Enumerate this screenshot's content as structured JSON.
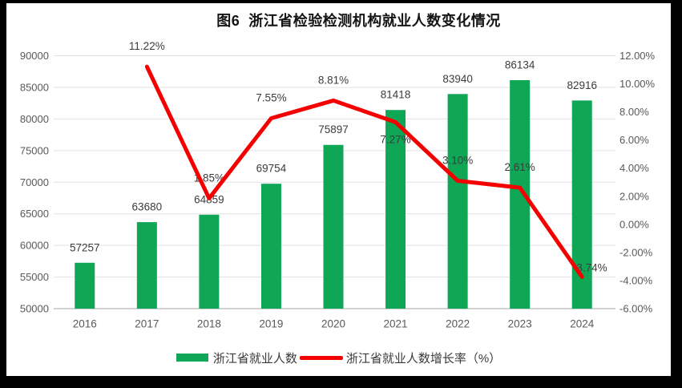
{
  "title": "图6  浙江省检验检测机构就业人数变化情况",
  "legend": {
    "items": [
      {
        "label": "浙江省就业人数",
        "swatch": "bar",
        "color": "#0FA655"
      },
      {
        "label": "浙江省就业人数增长率（%）",
        "swatch": "line",
        "color": "#F50000"
      }
    ]
  },
  "colors": {
    "bar": "#0FA655",
    "line": "#F50000",
    "axis_text": "#595959",
    "label_text": "#3C3C3C",
    "gridline": "#E2E2E2",
    "axis_line": "#C3C3C3",
    "background": "#FFFFFF",
    "frame": "#000000"
  },
  "chart_data": {
    "type": "bar+line combo",
    "title": "图6  浙江省检验检测机构就业人数变化情况",
    "categories": [
      "2016",
      "2017",
      "2018",
      "2019",
      "2020",
      "2021",
      "2022",
      "2023",
      "2024"
    ],
    "series": [
      {
        "name": "浙江省就业人数",
        "type": "bar",
        "axis": "left",
        "color": "#0FA655",
        "values": [
          57257,
          63680,
          64859,
          69754,
          75897,
          81418,
          83940,
          86134,
          82916
        ],
        "data_labels": [
          "57257",
          "63680",
          "64859",
          "69754",
          "75897",
          "81418",
          "83940",
          "86134",
          "82916"
        ]
      },
      {
        "name": "浙江省就业人数增长率（%）",
        "type": "line",
        "axis": "right",
        "color": "#F50000",
        "values": [
          null,
          11.22,
          1.85,
          7.55,
          8.81,
          7.27,
          3.1,
          2.61,
          -3.74
        ],
        "data_labels": [
          null,
          "11.22%",
          "1.85%",
          "7.55%",
          "8.81%",
          "7.27%",
          "3.10%",
          "2.61%",
          "-3.74%"
        ]
      }
    ],
    "left_axis": {
      "min": 50000,
      "max": 90000,
      "step": 5000,
      "tick_labels": [
        "50000",
        "55000",
        "60000",
        "65000",
        "70000",
        "75000",
        "80000",
        "85000",
        "90000"
      ]
    },
    "right_axis": {
      "min": -6,
      "max": 12,
      "step": 2,
      "tick_labels": [
        "-6.00%",
        "-4.00%",
        "-2.00%",
        "0.00%",
        "2.00%",
        "4.00%",
        "6.00%",
        "8.00%",
        "10.00%",
        "12.00%"
      ]
    },
    "grid": true,
    "legend_position": "bottom"
  }
}
